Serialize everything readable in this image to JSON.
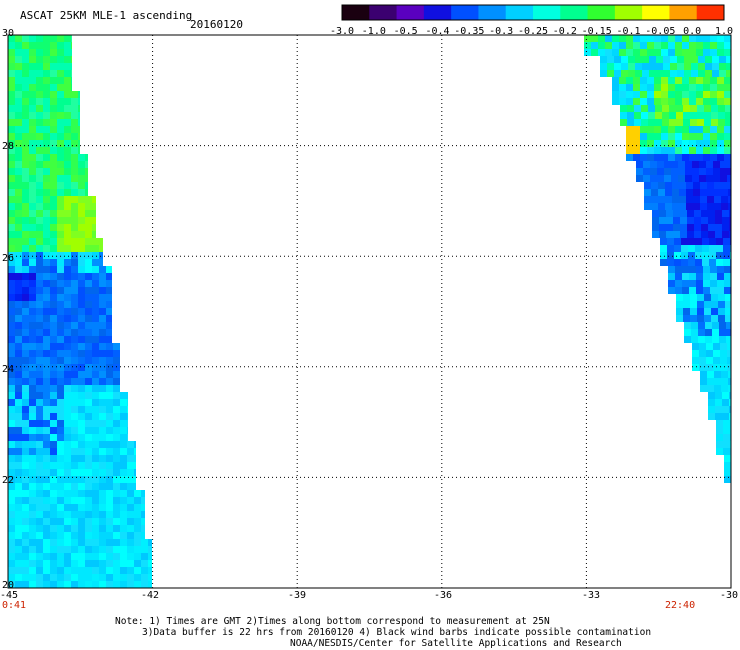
{
  "header": {
    "title": "ASCAT 25KM MLE-1 ascending",
    "date": "20160120"
  },
  "colorbar": {
    "labels": [
      "-3.0",
      "-1.0",
      "-0.5",
      "-0.4",
      "-0.35",
      "-0.3",
      "-0.25",
      "-0.2",
      "-0.15",
      "-0.1",
      "-0.05",
      "0.0",
      "1.0"
    ],
    "colors": [
      "#1a0010",
      "#3b0070",
      "#5a00c0",
      "#1010e0",
      "#0050ff",
      "#0090ff",
      "#00d0ff",
      "#00ffe0",
      "#00ff90",
      "#30ff30",
      "#a0ff00",
      "#ffff00",
      "#ffa000",
      "#ff3000"
    ]
  },
  "map": {
    "lon_range": [
      -45,
      -30
    ],
    "lat_range": [
      20,
      30
    ],
    "lon_ticks": [
      "-45",
      "-42",
      "-39",
      "-36",
      "-33",
      "-30"
    ],
    "lat_ticks": [
      "30",
      "28",
      "26",
      "24",
      "22",
      "20"
    ],
    "swath_times": {
      "left": "0:41",
      "right": "22:40"
    }
  },
  "notes": {
    "line1": "Note: 1) Times are GMT 2)Times along bottom correspond to measurement at 25N",
    "line2": "3)Data buffer is 22 hrs from 20160120 4) Black wind barbs indicate possible contamination",
    "line3": "NOAA/NESDIS/Center for Satellite Applications and Research"
  }
}
